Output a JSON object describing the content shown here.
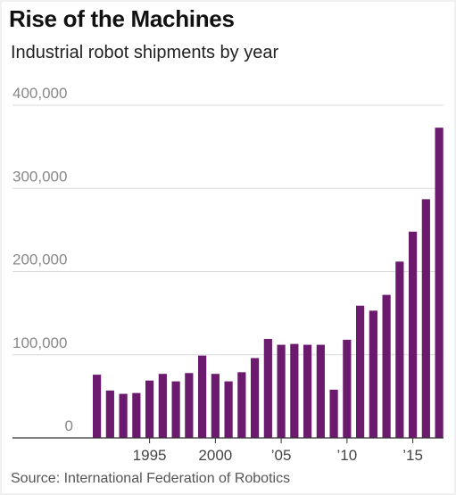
{
  "header": {
    "title": "Rise of the Machines",
    "subtitle": "Industrial robot shipments by year"
  },
  "footer": {
    "source": "Source: International Federation of Robotics"
  },
  "colors": {
    "bar": "#6b1a6e",
    "grid": "#d9d9d9",
    "axis": "#333333",
    "tick_label": "#888888",
    "background": "#ffffff"
  },
  "chart_data": {
    "type": "bar",
    "title": "Rise of the Machines",
    "subtitle": "Industrial robot shipments by year",
    "xlabel": "",
    "ylabel": "",
    "ylim": [
      0,
      400000
    ],
    "grid": true,
    "x": [
      1991,
      1992,
      1993,
      1994,
      1995,
      1996,
      1997,
      1998,
      1999,
      2000,
      2001,
      2002,
      2003,
      2004,
      2005,
      2006,
      2007,
      2008,
      2009,
      2010,
      2011,
      2012,
      2013,
      2014,
      2015,
      2016,
      2017
    ],
    "values": [
      76000,
      57000,
      53000,
      54000,
      69000,
      77000,
      68000,
      78000,
      99000,
      77000,
      68000,
      79000,
      96000,
      119000,
      112000,
      113000,
      112000,
      112000,
      58000,
      118000,
      159000,
      153000,
      172000,
      212000,
      248000,
      287000,
      373000
    ],
    "y_ticks": [
      {
        "value": 0,
        "label": "0"
      },
      {
        "value": 100000,
        "label": "100,000"
      },
      {
        "value": 200000,
        "label": "200,000"
      },
      {
        "value": 300000,
        "label": "300,000"
      },
      {
        "value": 400000,
        "label": "400,000"
      }
    ],
    "x_ticks": [
      {
        "value": 1995,
        "label": "1995"
      },
      {
        "value": 2000,
        "label": "2000"
      },
      {
        "value": 2005,
        "label": "’05"
      },
      {
        "value": 2010,
        "label": "’10"
      },
      {
        "value": 2015,
        "label": "’15"
      }
    ],
    "source": "Source: International Federation of Robotics"
  }
}
